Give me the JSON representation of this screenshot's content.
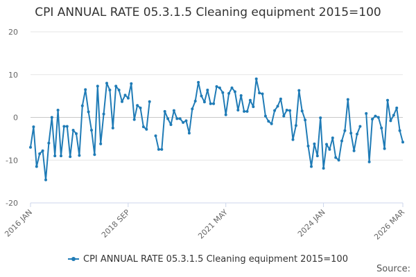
{
  "chart_data": {
    "type": "line",
    "title": "CPI ANNUAL RATE 05.3.1.5 Cleaning equipment 2015=100",
    "xlabel": "",
    "ylabel": "",
    "ylim": [
      -20,
      20
    ],
    "yticks": [
      20,
      10,
      0,
      -10,
      -20
    ],
    "x_start": "2016-01",
    "x_end": "2026-03",
    "xticks": [
      {
        "label": "2016 JAN",
        "index": 0
      },
      {
        "label": "2018 SEP",
        "index": 32
      },
      {
        "label": "2021 MAY",
        "index": 64
      },
      {
        "label": "2024 JAN",
        "index": 96
      },
      {
        "label": "2026 MAR",
        "index": 122
      }
    ],
    "grid": true,
    "legend_position": "bottom",
    "series": [
      {
        "name": "CPI ANNUAL RATE 05.3.1.5 Cleaning equipment 2015=100",
        "color": "#1f7bb6",
        "values": [
          -7.0,
          -2.2,
          -11.5,
          -8.5,
          -7.8,
          -14.6,
          -6.0,
          0.0,
          -9.0,
          1.7,
          -9.0,
          -2.1,
          -2.1,
          -9.2,
          -3.0,
          -3.8,
          -8.9,
          2.7,
          6.5,
          1.3,
          -3.0,
          -8.7,
          7.3,
          -6.2,
          0.8,
          8.0,
          6.4,
          -2.5,
          7.3,
          6.4,
          3.7,
          5.2,
          4.5,
          7.9,
          -0.5,
          2.8,
          2.2,
          -2.2,
          -2.8,
          3.7,
          null,
          -4.3,
          -7.5,
          -7.5,
          1.4,
          -0.3,
          -1.7,
          1.6,
          -0.3,
          -0.3,
          -1.2,
          -0.8,
          -3.7,
          2.0,
          3.8,
          8.2,
          5.0,
          3.6,
          6.4,
          3.2,
          3.2,
          7.2,
          6.9,
          5.8,
          0.6,
          5.6,
          6.9,
          6.0,
          1.7,
          5.1,
          1.4,
          1.4,
          4.0,
          2.5,
          9.0,
          5.7,
          5.5,
          0.3,
          -0.9,
          -1.5,
          1.6,
          2.6,
          4.3,
          0.3,
          1.7,
          1.6,
          -5.2,
          -1.9,
          6.3,
          1.5,
          -0.6,
          -6.7,
          -11.5,
          -6.2,
          -9.0,
          -0.1,
          -11.9,
          -6.3,
          -7.5,
          -4.8,
          -9.4,
          -10.0,
          -5.5,
          -3.1,
          4.2,
          -3.7,
          -7.8,
          -3.9,
          -2.1,
          null,
          0.9,
          -10.4,
          -0.4,
          0.3,
          0.0,
          -2.5,
          -7.3,
          4.0,
          -0.8,
          0.5,
          2.2,
          -3.1,
          -5.8
        ]
      }
    ]
  },
  "legend": {
    "label": "CPI ANNUAL RATE 05.3.1.5 Cleaning equipment 2015=100"
  },
  "footer": {
    "source_label": "Source:"
  }
}
